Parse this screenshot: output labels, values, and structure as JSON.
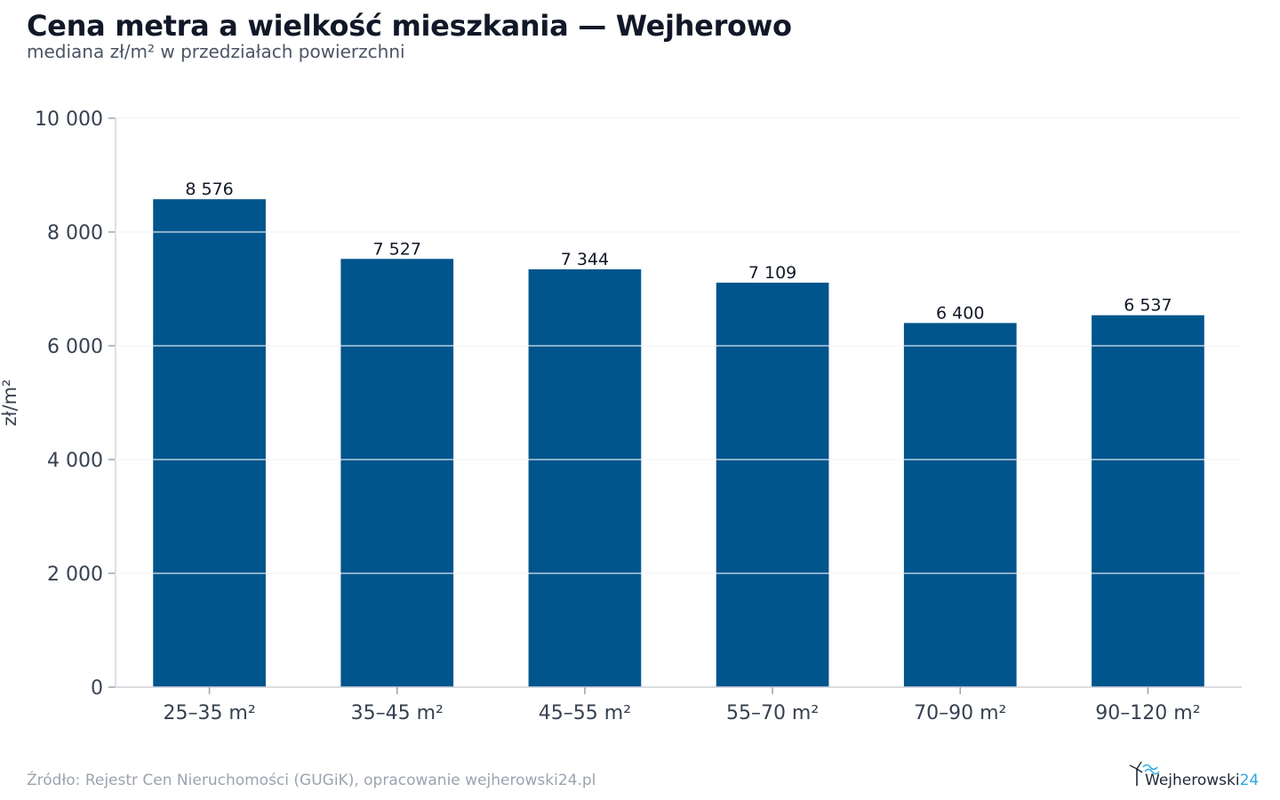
{
  "chart_data": {
    "type": "bar",
    "title": "Cena metra a wielkość mieszkania — Wejherowo",
    "subtitle": "mediana zł/m² w przedziałach powierzchni",
    "xlabel": "",
    "ylabel": "zł/m²",
    "categories": [
      "25–35 m²",
      "35–45 m²",
      "45–55 m²",
      "55–70 m²",
      "70–90 m²",
      "90–120 m²"
    ],
    "values": [
      8576,
      7527,
      7344,
      7109,
      6400,
      6537
    ],
    "value_labels": [
      "8 576",
      "7 527",
      "7 344",
      "7 109",
      "6 400",
      "6 537"
    ],
    "ylim": [
      0,
      10000
    ],
    "yticks": [
      0,
      2000,
      4000,
      6000,
      8000,
      10000
    ],
    "ytick_labels": [
      "0",
      "2 000",
      "4 000",
      "6 000",
      "8 000",
      "10 000"
    ],
    "grid": true,
    "legend": "none",
    "bar_color": "#00558c"
  },
  "footer": {
    "source": "Źródło: Rejestr Cen Nieruchomości (GUGiK), opracowanie wejherowski24.pl"
  },
  "logo": {
    "text_main": "Wejherowski",
    "text_suffix": "24",
    "icon": "wind-turbine-wave-icon",
    "color_main": "#1f2937",
    "color_accent": "#29a8df"
  }
}
